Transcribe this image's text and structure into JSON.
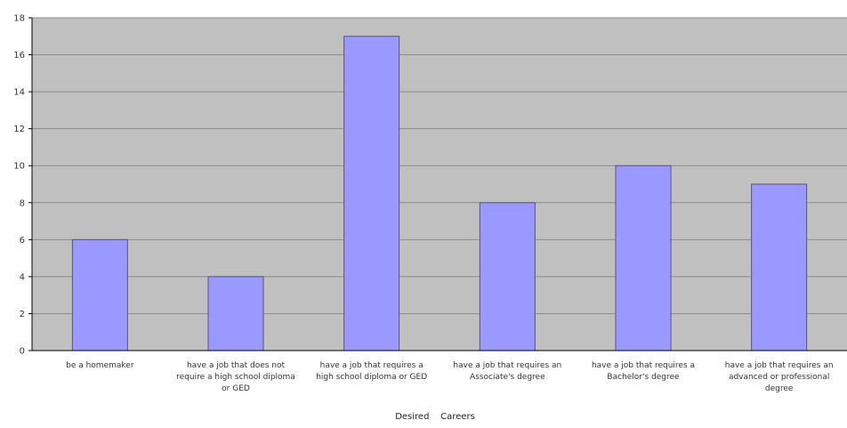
{
  "chart_data": {
    "type": "bar",
    "title": "",
    "xlabel": "Desired    Careers",
    "ylabel": "",
    "ylim": [
      0,
      18
    ],
    "yticks": [
      0,
      2,
      4,
      6,
      8,
      10,
      12,
      14,
      16,
      18
    ],
    "grid": true,
    "legend": "none",
    "categories": [
      [
        "be a homemaker"
      ],
      [
        "have a job that does not",
        "require a high school diploma",
        "or GED"
      ],
      [
        "have a job that requires a",
        "high school diploma or GED"
      ],
      [
        "have a job that requires an",
        "Associate's degree"
      ],
      [
        "have a job that requires a",
        "Bachelor's degree"
      ],
      [
        "have a job that requires an",
        "advanced or professional",
        "degree"
      ]
    ],
    "values": [
      6,
      4,
      17,
      8,
      10,
      9
    ],
    "colors": {
      "bar_fill": "#9999ff",
      "bar_stroke": "#555577",
      "plot_background": "#c0c0c0",
      "gridline": "#8c8c8c"
    }
  }
}
